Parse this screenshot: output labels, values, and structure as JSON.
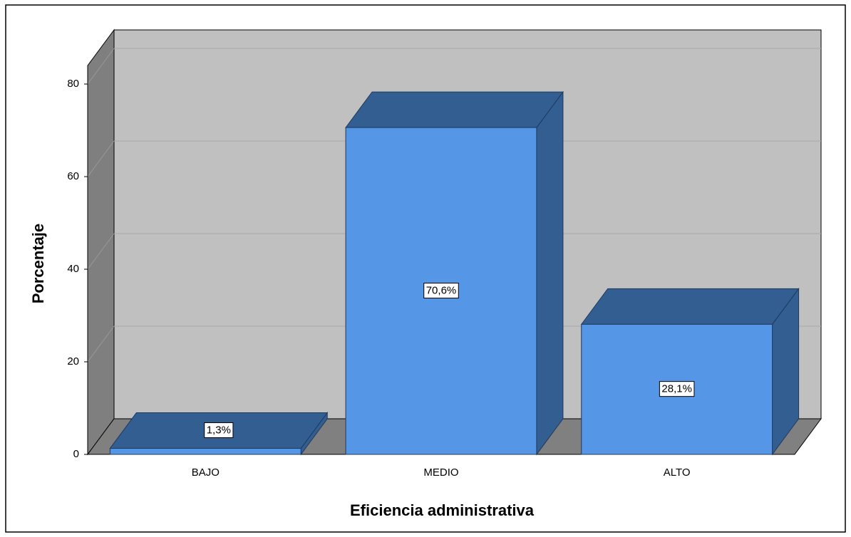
{
  "chart_data": {
    "type": "bar3d",
    "x_label": "Eficiencia administrativa",
    "y_label": "Porcentaje",
    "categories": [
      "BAJO",
      "MEDIO",
      "ALTO"
    ],
    "values": [
      1.3,
      70.6,
      28.1
    ],
    "value_labels": [
      "1,3%",
      "70,6%",
      "28,1%"
    ],
    "color": "#5596e6",
    "shade_color": "#335e92",
    "ylim": [
      0,
      84
    ],
    "yticks": [
      0,
      20,
      40,
      60,
      80
    ],
    "grid": true
  }
}
